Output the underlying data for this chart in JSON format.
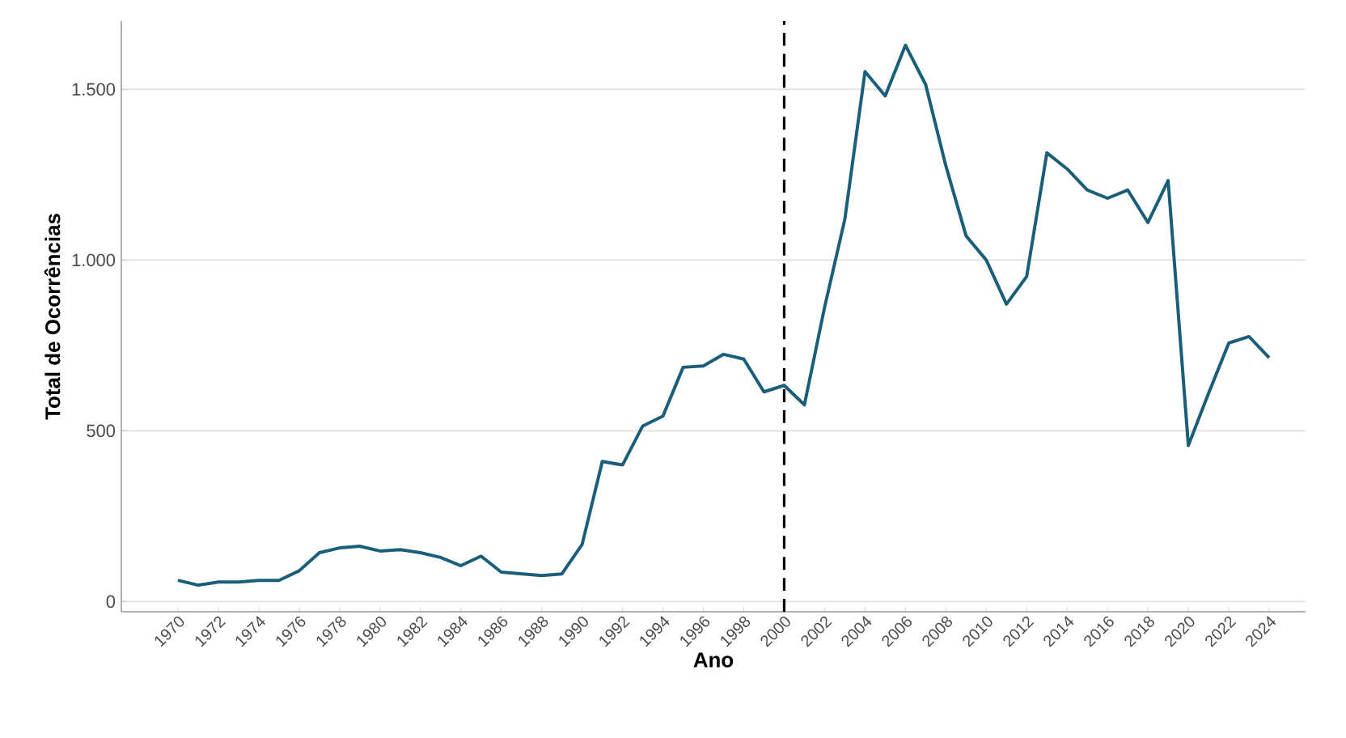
{
  "chart_data": {
    "type": "line",
    "xlabel": "Ano",
    "ylabel": "Total de Ocorrências",
    "x": [
      1970,
      1971,
      1972,
      1973,
      1974,
      1975,
      1976,
      1977,
      1978,
      1979,
      1980,
      1981,
      1982,
      1983,
      1984,
      1985,
      1986,
      1987,
      1988,
      1989,
      1990,
      1991,
      1992,
      1993,
      1994,
      1995,
      1996,
      1997,
      1998,
      1999,
      2000,
      2001,
      2002,
      2003,
      2004,
      2005,
      2006,
      2007,
      2008,
      2009,
      2010,
      2011,
      2012,
      2013,
      2014,
      2015,
      2016,
      2017,
      2018,
      2019,
      2020,
      2021,
      2022,
      2023,
      2024
    ],
    "series": [
      {
        "color": "#1b5e7a",
        "values": [
          62,
          48,
          57,
          57,
          62,
          62,
          90,
          143,
          157,
          162,
          148,
          152,
          143,
          129,
          105,
          133,
          86,
          81,
          76,
          81,
          167,
          410,
          400,
          514,
          543,
          686,
          690,
          724,
          710,
          614,
          633,
          576,
          862,
          1119,
          1552,
          1481,
          1629,
          1514,
          1276,
          1071,
          1000,
          871,
          952,
          1314,
          1267,
          1205,
          1181,
          1205,
          1110,
          1233,
          457,
          610,
          757,
          776,
          714
        ]
      }
    ],
    "xlim": [
      1967.2,
      2025.8
    ],
    "ylim": [
      -30,
      1700
    ],
    "xticks": [
      1970,
      1972,
      1974,
      1976,
      1978,
      1980,
      1982,
      1984,
      1986,
      1988,
      1990,
      1992,
      1994,
      1996,
      1998,
      2000,
      2002,
      2004,
      2006,
      2008,
      2010,
      2012,
      2014,
      2016,
      2018,
      2020,
      2022,
      2024
    ],
    "yticks": [
      0,
      500,
      {
        "value": 1000,
        "label": "1.000"
      },
      {
        "value": 1500,
        "label": "1.500"
      }
    ],
    "ref_lines": [
      {
        "axis": "x",
        "value": 2000,
        "color": "#000000",
        "line_style": "dashed"
      }
    ],
    "grid": "y",
    "marker": "none",
    "line_style": "solid"
  }
}
